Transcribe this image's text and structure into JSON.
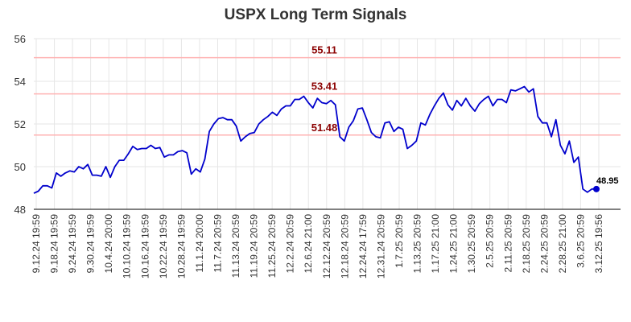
{
  "chart_data": {
    "type": "line",
    "title": "USPX Long Term Signals",
    "xlabel": "",
    "ylabel": "",
    "ylim": [
      48,
      56
    ],
    "yticks": [
      48,
      50,
      52,
      54,
      56
    ],
    "grid": true,
    "legend": "none",
    "xtick_labels": [
      "9.12.24 19:59",
      "9.18.24 19:59",
      "9.24.24 19:59",
      "9.30.24 19:59",
      "10.4.24 20:00",
      "10.10.24 19:59",
      "10.16.24 19:59",
      "10.22.24 19:59",
      "10.28.24 19:59",
      "11.1.24 20:00",
      "11.7.24 20:59",
      "11.13.24 20:59",
      "11.19.24 20:59",
      "11.25.24 20:59",
      "12.2.24 20:59",
      "12.6.24 21:00",
      "12.12.24 20:59",
      "12.18.24 20:59",
      "12.24.24 17:59",
      "12.31.24 20:59",
      "1.7.25 20:59",
      "1.13.25 20:59",
      "1.17.25 21:00",
      "1.24.25 21:00",
      "1.30.25 20:59",
      "2.5.25 20:59",
      "2.11.25 20:59",
      "2.18.25 20:59",
      "2.24.25 20:59",
      "2.28.25 21:00",
      "3.6.25 20:59",
      "3.12.25 19:56"
    ],
    "series": [
      {
        "color": "#0000cc",
        "values": [
          48.75,
          48.85,
          49.1,
          49.1,
          49.0,
          49.7,
          49.55,
          49.7,
          49.8,
          49.75,
          50.0,
          49.9,
          50.1,
          49.6,
          49.6,
          49.55,
          50.0,
          49.5,
          50.0,
          50.3,
          50.3,
          50.6,
          50.95,
          50.8,
          50.85,
          50.85,
          51.0,
          50.85,
          50.9,
          50.45,
          50.55,
          50.55,
          50.7,
          50.75,
          50.65,
          49.65,
          49.9,
          49.75,
          50.35,
          51.65,
          52.0,
          52.25,
          52.3,
          52.2,
          52.2,
          51.9,
          51.2,
          51.4,
          51.55,
          51.6,
          52.0,
          52.2,
          52.35,
          52.55,
          52.4,
          52.7,
          52.85,
          52.85,
          53.15,
          53.15,
          53.3,
          53.0,
          52.75,
          53.2,
          53.0,
          52.95,
          53.1,
          52.9,
          51.4,
          51.2,
          51.85,
          52.15,
          52.7,
          52.75,
          52.2,
          51.6,
          51.4,
          51.35,
          52.05,
          52.1,
          51.65,
          51.85,
          51.75,
          50.85,
          51.0,
          51.2,
          52.05,
          51.95,
          52.45,
          52.85,
          53.2,
          53.45,
          52.9,
          52.65,
          53.1,
          52.85,
          53.2,
          52.85,
          52.6,
          52.95,
          53.15,
          53.3,
          52.85,
          53.15,
          53.15,
          53.0,
          53.6,
          53.55,
          53.65,
          53.75,
          53.5,
          53.65,
          52.35,
          52.05,
          52.05,
          51.4,
          52.2,
          51.0,
          50.6,
          51.2,
          50.2,
          50.45,
          48.95,
          48.8,
          48.95,
          48.95
        ]
      }
    ],
    "reference_lines": [
      {
        "value": 55.11,
        "label": "55.11",
        "color": "#ffb3b3"
      },
      {
        "value": 53.41,
        "label": "53.41",
        "color": "#ffb3b3"
      },
      {
        "value": 51.48,
        "label": "51.48",
        "color": "#ffb3b3"
      }
    ],
    "last_point": {
      "label": "48.95",
      "value": 48.95
    }
  }
}
